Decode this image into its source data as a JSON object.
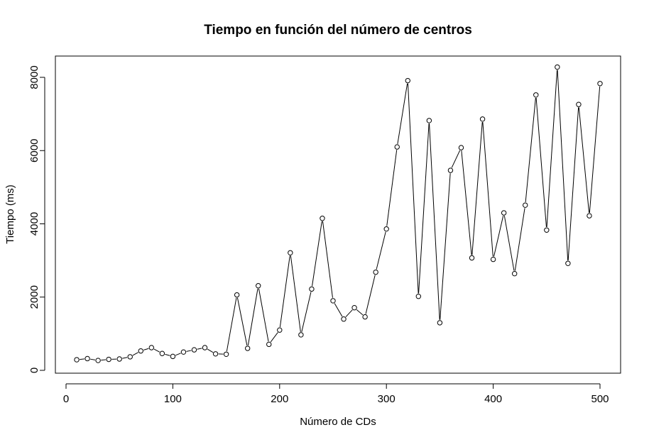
{
  "chart_data": {
    "type": "line",
    "title": "Tiempo en función del número de centros",
    "xlabel": "Número de CDs",
    "ylabel": "Tiempo (ms)",
    "xlim": [
      0,
      520
    ],
    "ylim": [
      0,
      8500
    ],
    "x_ticks": [
      0,
      100,
      200,
      300,
      400,
      500
    ],
    "y_ticks": [
      0,
      2000,
      4000,
      6000,
      8000
    ],
    "x_tick_labels": [
      "0",
      "100",
      "200",
      "300",
      "400",
      "500"
    ],
    "y_tick_labels": [
      "0",
      "2000",
      "4000",
      "6000",
      "8000"
    ],
    "marker": "open-circle",
    "line_color": "#000000",
    "grid": false,
    "legend": "none",
    "x": [
      10,
      20,
      30,
      40,
      50,
      60,
      70,
      80,
      90,
      100,
      110,
      120,
      130,
      140,
      150,
      160,
      170,
      180,
      190,
      200,
      210,
      220,
      230,
      240,
      250,
      260,
      270,
      280,
      290,
      300,
      310,
      320,
      330,
      340,
      350,
      360,
      370,
      380,
      390,
      400,
      410,
      420,
      430,
      440,
      450,
      460,
      470,
      480,
      490,
      500
    ],
    "y": [
      290,
      320,
      270,
      300,
      310,
      370,
      530,
      620,
      460,
      380,
      500,
      560,
      620,
      450,
      440,
      2060,
      600,
      2310,
      710,
      1100,
      3210,
      970,
      2220,
      4150,
      1900,
      1400,
      1710,
      1460,
      2680,
      3860,
      6100,
      7910,
      2020,
      6820,
      1300,
      5460,
      6080,
      3070,
      6860,
      3030,
      4300,
      2640,
      4510,
      7520,
      3830,
      8280,
      2920,
      7260,
      4220,
      7830
    ]
  }
}
